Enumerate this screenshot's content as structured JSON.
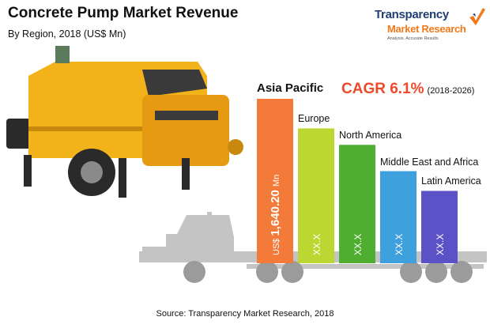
{
  "header": {
    "title": "Concrete Pump Market Revenue",
    "subtitle": "By Region, 2018 (US$ Mn)"
  },
  "logo": {
    "line1": "Transparency",
    "line2": "Market Research",
    "tagline": "Analysis. Accurate Results"
  },
  "cagr": {
    "value": "CAGR 6.1%",
    "period": "(2018-2026)"
  },
  "source": "Source: Transparency Market Research, 2018",
  "colors": {
    "asia_pacific": "#f47a3a",
    "europe": "#bcd632",
    "north_america": "#4fae2f",
    "middle_east_africa": "#3ea0dd",
    "latin_america": "#5a52c6",
    "pump_body": "#f2b21a",
    "truck": "#c4c4c4"
  },
  "chart_data": {
    "type": "bar",
    "title": "Concrete Pump Market Revenue",
    "subtitle": "By Region, 2018 (US$ Mn)",
    "categories": [
      "Asia Pacific",
      "Europe",
      "North America",
      "Middle East and Africa",
      "Latin America"
    ],
    "value_labels": [
      "US$ 1,640.20 Mn",
      "XX.X",
      "XX.X",
      "XX.X",
      "XX.X"
    ],
    "bar_levels": [
      1.0,
      0.82,
      0.72,
      0.56,
      0.44
    ],
    "series": [
      {
        "values": [
          1640.2,
          null,
          null,
          null,
          null
        ]
      }
    ]
  }
}
